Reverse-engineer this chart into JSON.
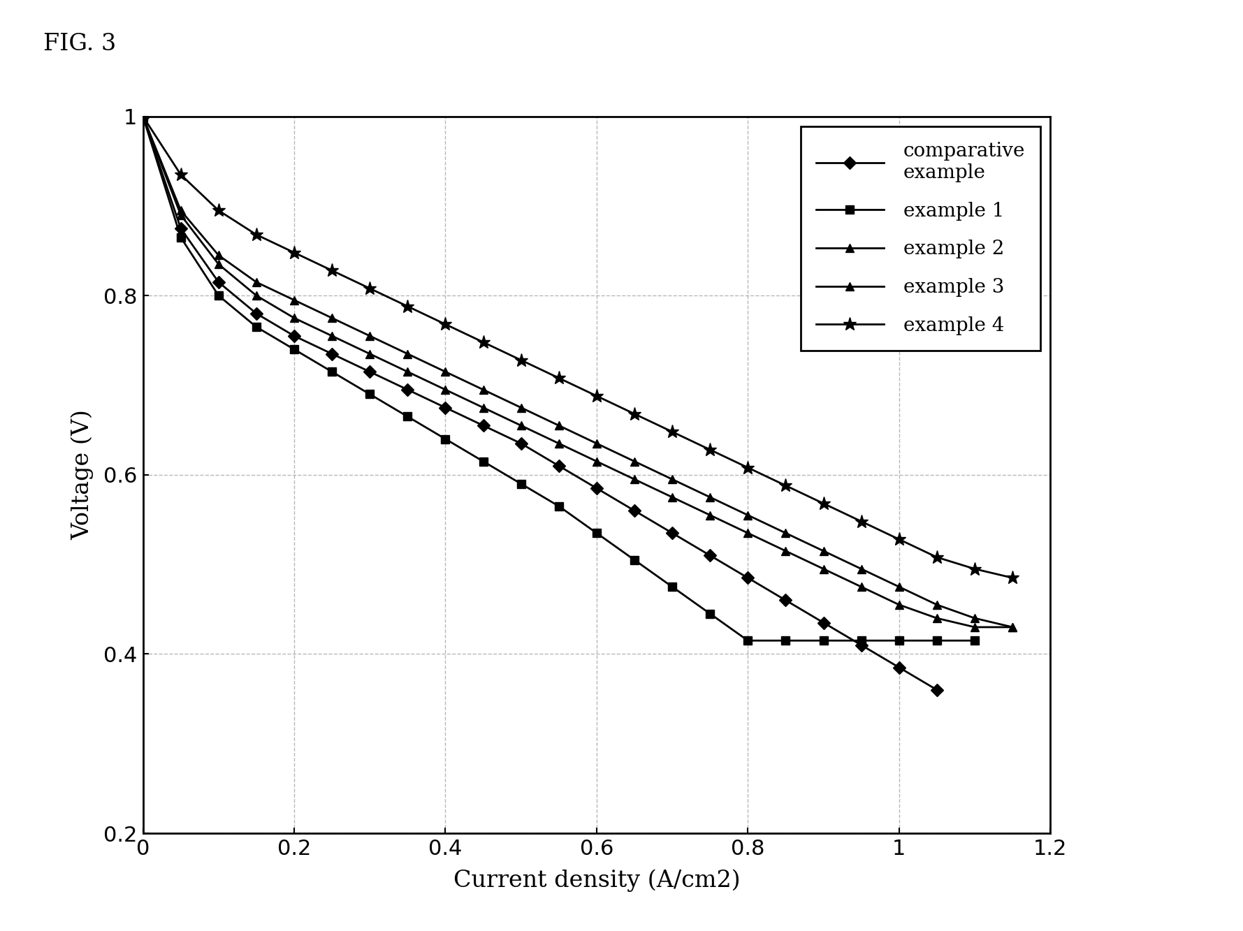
{
  "fig_title": "FIG. 3",
  "xlabel": "Current density (A/cm2)",
  "ylabel": "Voltage (V)",
  "xlim": [
    0,
    1.2
  ],
  "ylim": [
    0.2,
    1.0
  ],
  "xticks": [
    0,
    0.2,
    0.4,
    0.6,
    0.8,
    1.0,
    1.2
  ],
  "yticks": [
    0.2,
    0.4,
    0.6,
    0.8,
    1.0
  ],
  "background_color": "#ffffff",
  "grid_color": "#999999",
  "series": [
    {
      "label": "comparative\nexample",
      "marker": "D",
      "color": "#000000",
      "x": [
        0.0,
        0.05,
        0.1,
        0.15,
        0.2,
        0.25,
        0.3,
        0.35,
        0.4,
        0.45,
        0.5,
        0.55,
        0.6,
        0.65,
        0.7,
        0.75,
        0.8,
        0.85,
        0.9,
        0.95,
        1.0,
        1.05
      ],
      "y": [
        1.0,
        0.875,
        0.815,
        0.78,
        0.755,
        0.735,
        0.715,
        0.695,
        0.675,
        0.655,
        0.635,
        0.61,
        0.585,
        0.56,
        0.535,
        0.51,
        0.485,
        0.46,
        0.435,
        0.41,
        0.385,
        0.36
      ]
    },
    {
      "label": "example 1",
      "marker": "s",
      "color": "#000000",
      "x": [
        0.0,
        0.05,
        0.1,
        0.15,
        0.2,
        0.25,
        0.3,
        0.35,
        0.4,
        0.45,
        0.5,
        0.55,
        0.6,
        0.65,
        0.7,
        0.75,
        0.8,
        0.85,
        0.9,
        0.95,
        1.0,
        1.05,
        1.1
      ],
      "y": [
        1.0,
        0.865,
        0.8,
        0.765,
        0.74,
        0.715,
        0.69,
        0.665,
        0.64,
        0.615,
        0.59,
        0.565,
        0.535,
        0.505,
        0.475,
        0.445,
        0.415,
        0.415,
        0.415,
        0.415,
        0.415,
        0.415,
        0.415
      ]
    },
    {
      "label": "example 2",
      "marker": "^",
      "color": "#000000",
      "x": [
        0.0,
        0.05,
        0.1,
        0.15,
        0.2,
        0.25,
        0.3,
        0.35,
        0.4,
        0.45,
        0.5,
        0.55,
        0.6,
        0.65,
        0.7,
        0.75,
        0.8,
        0.85,
        0.9,
        0.95,
        1.0,
        1.05,
        1.1,
        1.15
      ],
      "y": [
        1.0,
        0.89,
        0.835,
        0.8,
        0.775,
        0.755,
        0.735,
        0.715,
        0.695,
        0.675,
        0.655,
        0.635,
        0.615,
        0.595,
        0.575,
        0.555,
        0.535,
        0.515,
        0.495,
        0.475,
        0.455,
        0.44,
        0.43,
        0.43
      ]
    },
    {
      "label": "example 3",
      "marker": "^",
      "color": "#000000",
      "x": [
        0.0,
        0.05,
        0.1,
        0.15,
        0.2,
        0.25,
        0.3,
        0.35,
        0.4,
        0.45,
        0.5,
        0.55,
        0.6,
        0.65,
        0.7,
        0.75,
        0.8,
        0.85,
        0.9,
        0.95,
        1.0,
        1.05,
        1.1,
        1.15
      ],
      "y": [
        1.0,
        0.895,
        0.845,
        0.815,
        0.795,
        0.775,
        0.755,
        0.735,
        0.715,
        0.695,
        0.675,
        0.655,
        0.635,
        0.615,
        0.595,
        0.575,
        0.555,
        0.535,
        0.515,
        0.495,
        0.475,
        0.455,
        0.44,
        0.43
      ]
    },
    {
      "label": "example 4",
      "marker": "*",
      "color": "#000000",
      "x": [
        0.0,
        0.05,
        0.1,
        0.15,
        0.2,
        0.25,
        0.3,
        0.35,
        0.4,
        0.45,
        0.5,
        0.55,
        0.6,
        0.65,
        0.7,
        0.75,
        0.8,
        0.85,
        0.9,
        0.95,
        1.0,
        1.05,
        1.1,
        1.15
      ],
      "y": [
        1.0,
        0.935,
        0.895,
        0.868,
        0.848,
        0.828,
        0.808,
        0.788,
        0.768,
        0.748,
        0.728,
        0.708,
        0.688,
        0.668,
        0.648,
        0.628,
        0.608,
        0.588,
        0.568,
        0.548,
        0.528,
        0.508,
        0.495,
        0.485
      ]
    }
  ]
}
